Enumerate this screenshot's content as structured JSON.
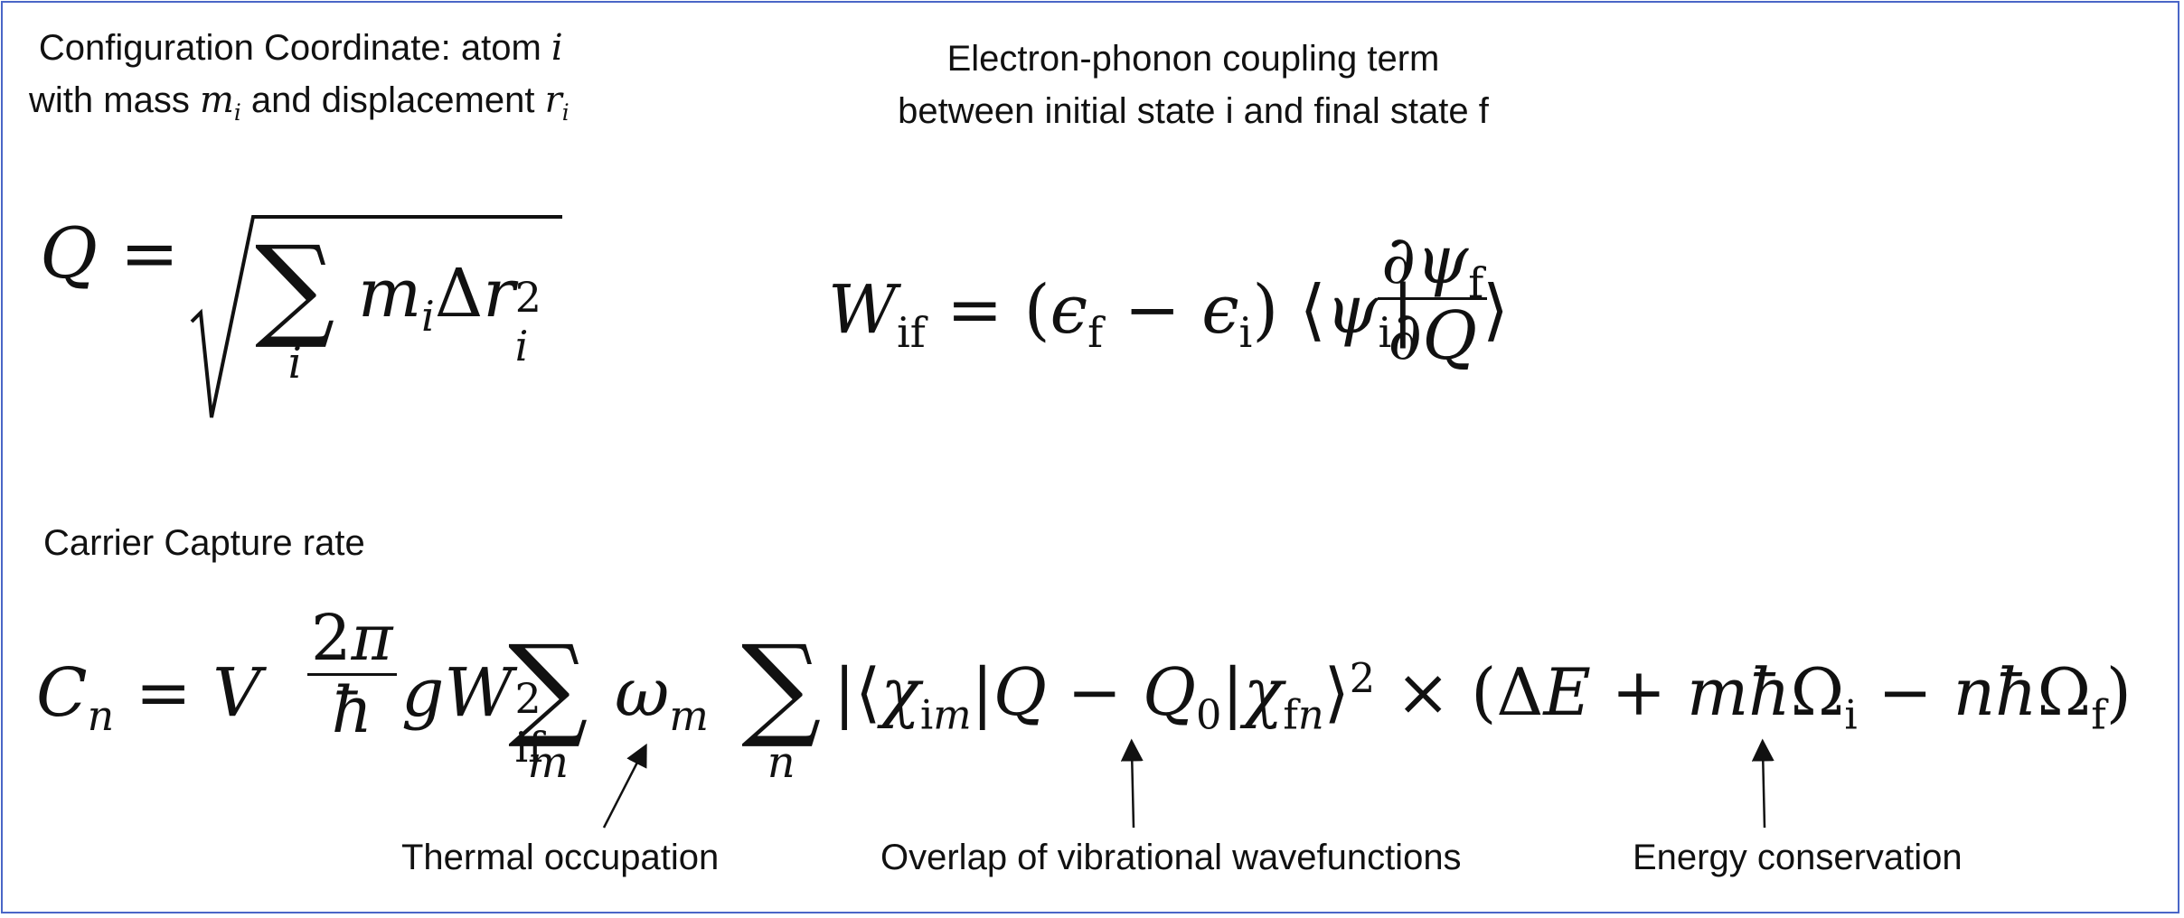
{
  "texts": {
    "config_line1_text": "Configuration Coordinate: atom ",
    "config_line1_var": "i",
    "config_line2_a": "with mass ",
    "config_line2_m": "m",
    "config_line2_mi": "i",
    "config_line2_b": " and displacement ",
    "config_line2_r": "r",
    "config_line2_ri": "i",
    "coupling_line1": "Electron-phonon coupling term",
    "coupling_line2": "between initial state i and final state f",
    "capture_title": "Carrier Capture rate",
    "annotation_thermal": "Thermal occupation",
    "annotation_overlap": "Overlap of vibrational wavefunctions",
    "annotation_energy": "Energy conservation"
  },
  "equations": {
    "q_equation": "Q = √( Σ_i m_i Δr_i² )",
    "w_equation": "W_if = (ϵ_f − ϵ_i) ⟨ψ_i| ∂ψ_f/∂Q ⟩",
    "c_equation": "C_n = V (2π/ħ) g W_if² Σ_m ω_m Σ_n |⟨χ_im|Q − Q_0|χ_fn⟩|² × (ΔE + mħΩ_i − nħΩ_f)"
  },
  "colors": {
    "frame_border": "#4a66c7",
    "text": "#111111",
    "background": "#ffffff"
  }
}
